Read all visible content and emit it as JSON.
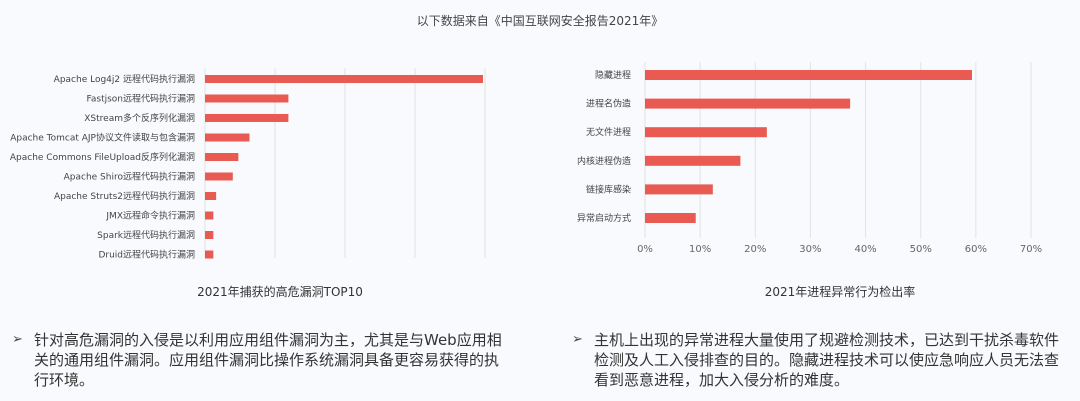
{
  "header": "以下数据来自《中国互联网安全报告2021年》",
  "chart_data": [
    {
      "type": "bar",
      "orientation": "horizontal",
      "title": "2021年捕获的高危漏洞TOP10",
      "categories": [
        "Apache Log4j2 远程代码执行漏洞",
        "Fastjson远程代码执行漏洞",
        "XStream多个反序列化漏洞",
        "Apache Tomcat AJP协议文件读取与包含漏洞",
        "Apache Commons FileUpload反序列化漏洞",
        "Apache Shiro远程代码执行漏洞",
        "Apache Struts2远程代码执行漏洞",
        "JMX远程命令执行漏洞",
        "Spark远程代码执行漏洞",
        "Druid远程代码执行漏洞"
      ],
      "values": [
        100,
        30,
        30,
        16,
        12,
        10,
        4,
        3,
        3,
        3
      ],
      "xlim": [
        0,
        140
      ],
      "grid": true
    },
    {
      "type": "bar",
      "orientation": "horizontal",
      "title": "2021年进程异常行为检出率",
      "categories": [
        "隐藏进程",
        "进程名伪造",
        "无文件进程",
        "内核进程伪造",
        "链接库感染",
        "异常启动方式"
      ],
      "values": [
        59.3,
        37.2,
        22.1,
        17.3,
        12.3,
        9.2
      ],
      "xlim": [
        0,
        70
      ],
      "xticks": [
        "0%",
        "10%",
        "20%",
        "30%",
        "40%",
        "50%",
        "60%",
        "70%"
      ],
      "grid": true
    }
  ],
  "bullets": [
    {
      "marker": "➢",
      "text": "针对高危漏洞的入侵是以利用应用组件漏洞为主，尤其是与Web应用相关的通用组件漏洞。应用组件漏洞比操作系统漏洞具备更容易获得的执行环境。"
    },
    {
      "marker": "➢",
      "text": "主机上出现的异常进程大量使用了规避检测技术，已达到干扰杀毒软件检测及人工入侵排查的目的。隐藏进程技术可以使应急响应人员无法查看到恶意进程，加大入侵分析的难度。"
    }
  ],
  "colors": {
    "bar": "#e85a52",
    "grid": "#e3e3e3"
  }
}
